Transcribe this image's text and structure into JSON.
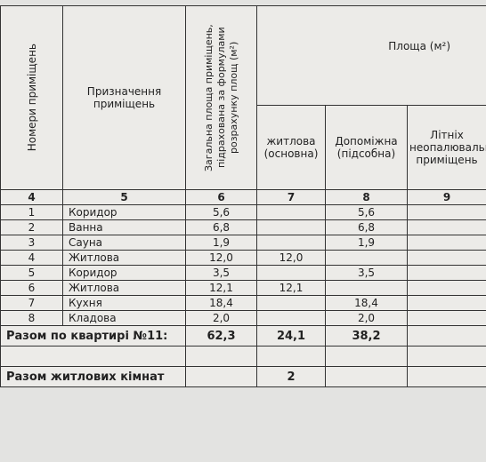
{
  "header": {
    "rooms_no": "Номери приміщень",
    "purpose": "Призначення приміщень",
    "total_area": "Загальна площа приміщень, підрахована за формулами розрахунку площ (м²)",
    "area": "Площа (м²)",
    "living": "житлова (основна)",
    "auxiliary": "Допоміжна (підсобна)",
    "summer": "Літніх неопалювальних приміщень",
    "column_numbers": [
      "4",
      "5",
      "6",
      "7",
      "8",
      "9"
    ]
  },
  "table": {
    "rows": [
      [
        "1",
        "Коридор",
        "5,6",
        null,
        "5,6",
        null
      ],
      [
        "2",
        "Ванна",
        "6,8",
        null,
        "6,8",
        null
      ],
      [
        "3",
        "Сауна",
        "1,9",
        null,
        "1,9",
        null
      ],
      [
        "4",
        "Житлова",
        "12,0",
        "12,0",
        null,
        null
      ],
      [
        "5",
        "Коридор",
        "3,5",
        null,
        "3,5",
        null
      ],
      [
        "6",
        "Житлова",
        "12,1",
        "12,1",
        null,
        null
      ],
      [
        "7",
        "Кухня",
        "18,4",
        null,
        "18,4",
        null
      ],
      [
        "8",
        "Кладова",
        "2,0",
        null,
        "2,0",
        null
      ]
    ]
  },
  "totals": {
    "label": "Разом по квартирі №11:",
    "total_area": "62,3",
    "living": "24,1",
    "auxiliary": "38,2"
  },
  "living_rooms": {
    "label": "Разом житлових кімнат",
    "count": "2"
  }
}
